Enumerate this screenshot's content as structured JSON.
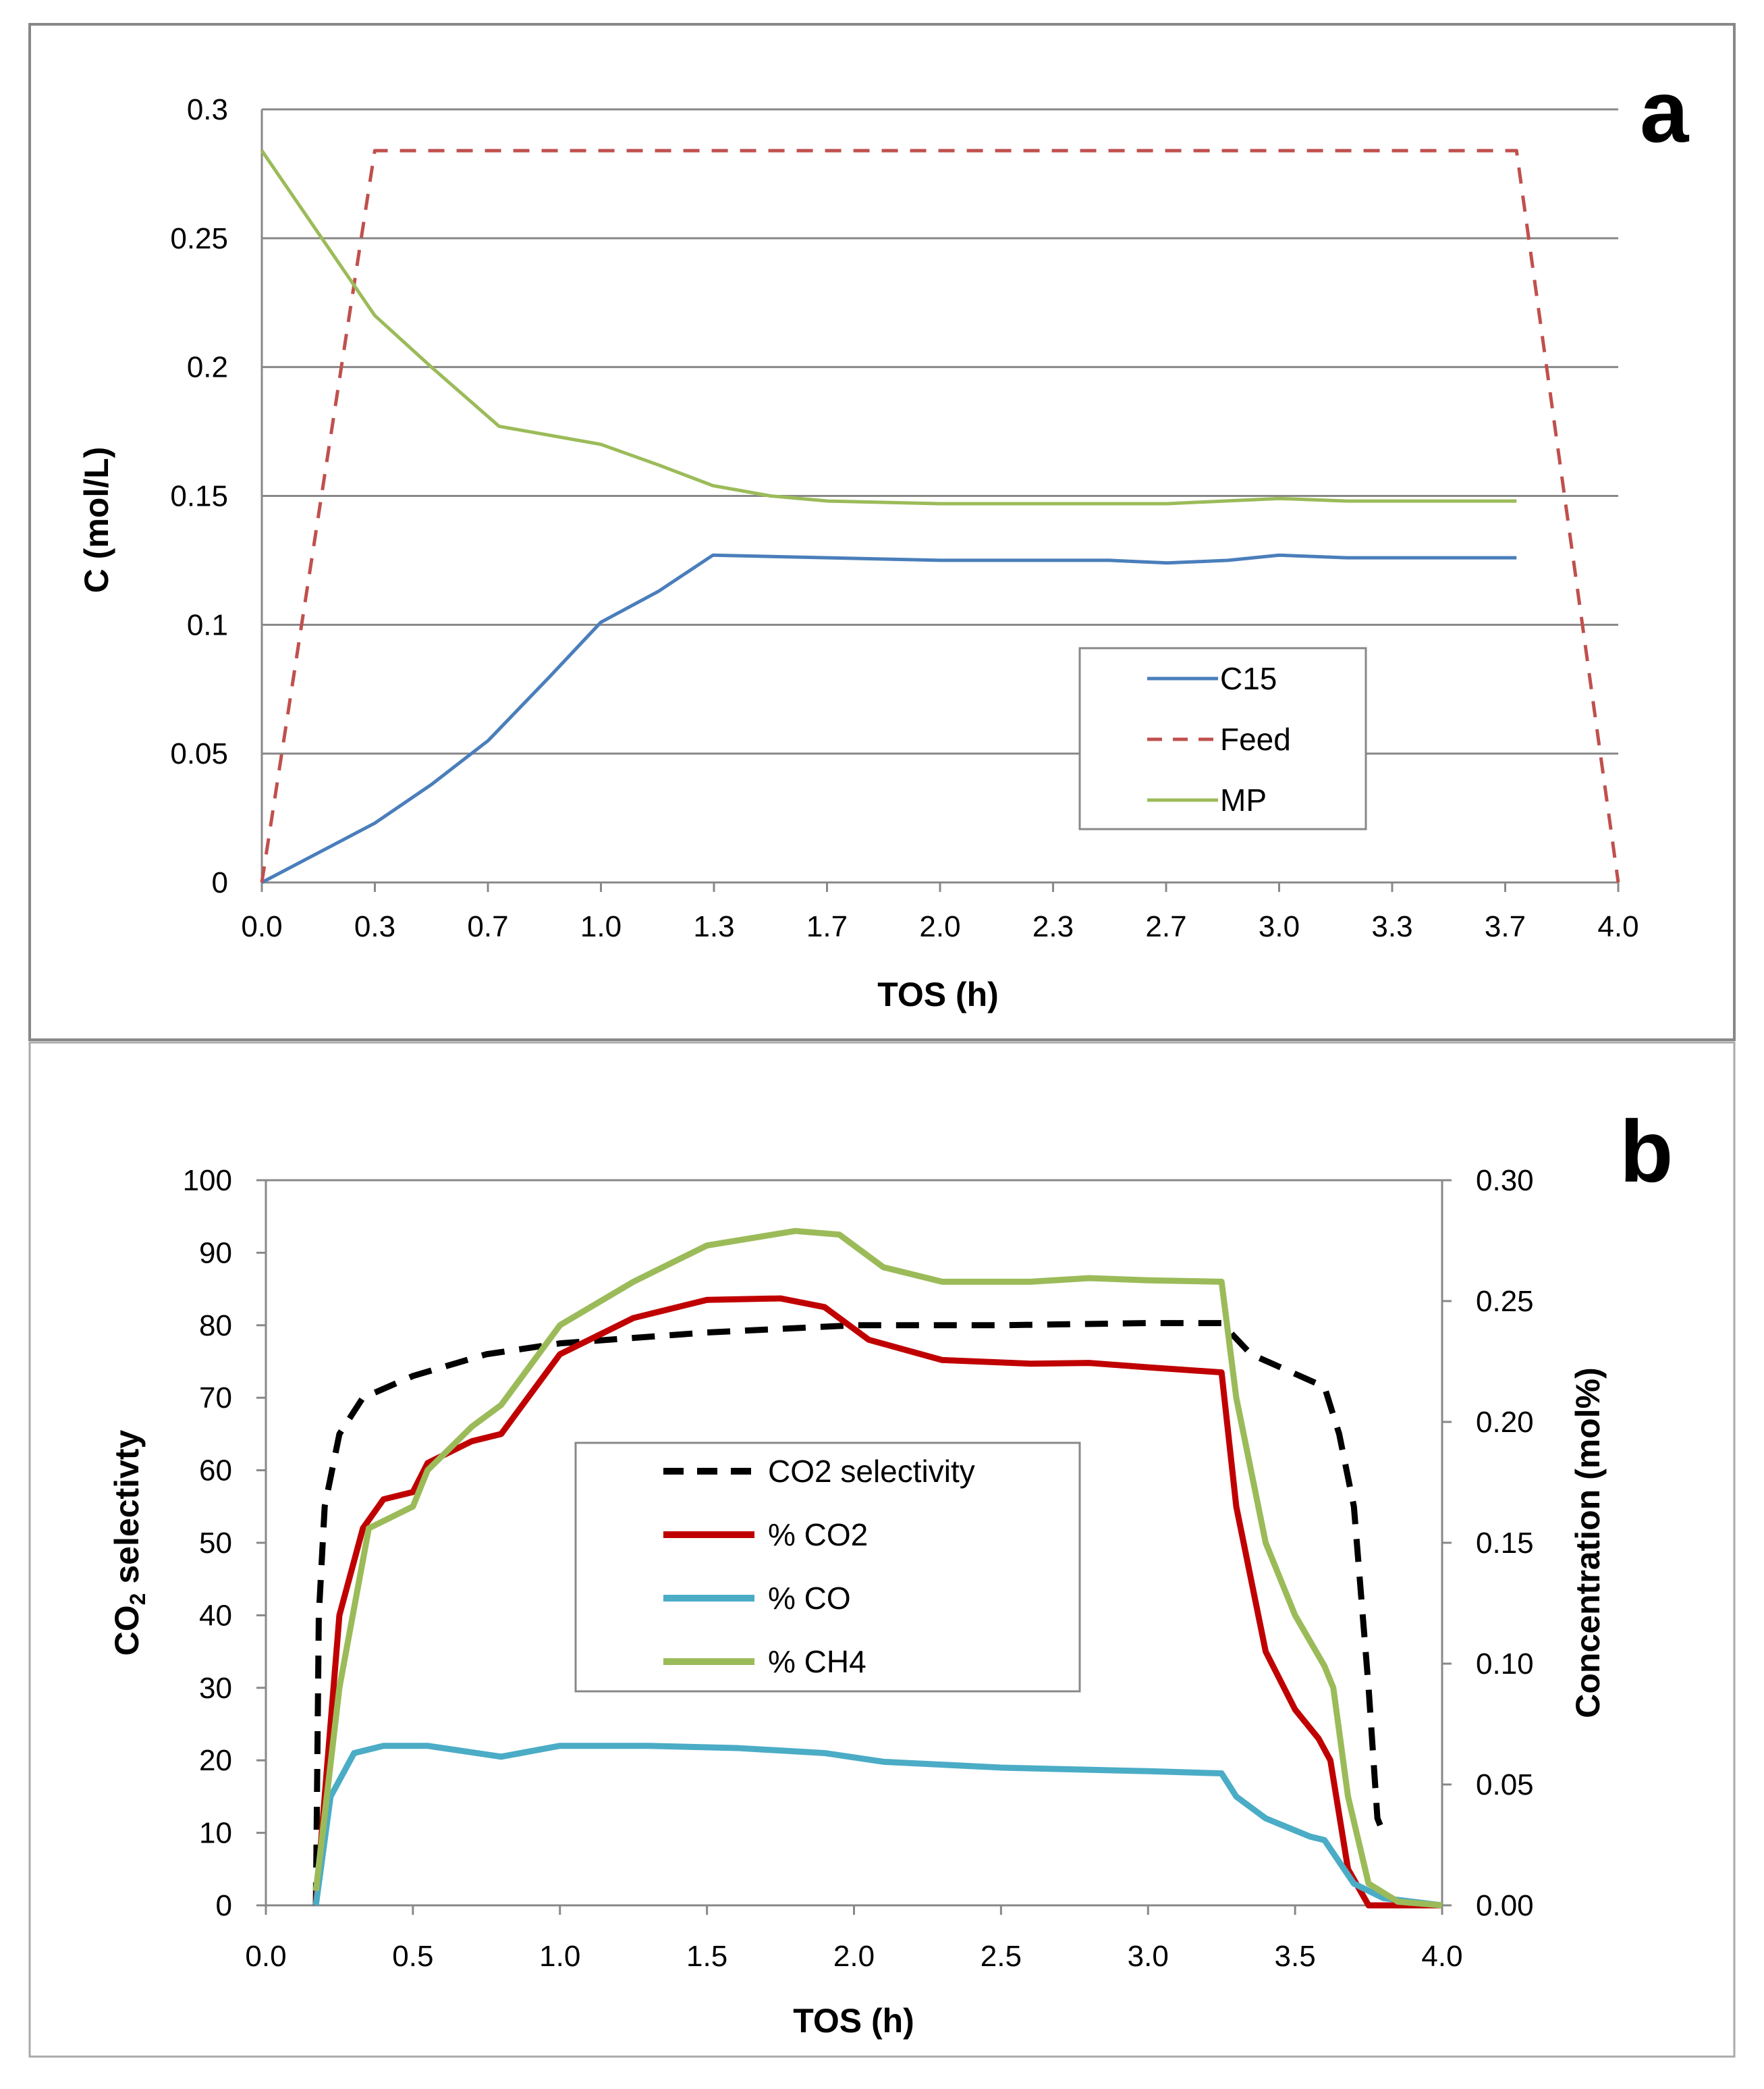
{
  "chart_data": [
    {
      "type": "line",
      "panel_label": "a",
      "xlabel": "TOS (h)",
      "ylabel": "C (mol/L)",
      "xlim": [
        0,
        4.0
      ],
      "ylim": [
        0,
        0.3
      ],
      "x_ticks": [
        0,
        0.3333,
        0.6667,
        1.0,
        1.3333,
        1.6667,
        2.0,
        2.3333,
        2.6667,
        3.0,
        3.3333,
        3.6667,
        4.0
      ],
      "x_tick_labels": [
        "0.0",
        "0.3",
        "0.7",
        "1.0",
        "1.3",
        "1.7",
        "2.0",
        "2.3",
        "2.7",
        "3.0",
        "3.3",
        "3.7",
        "4.0"
      ],
      "y_ticks": [
        0,
        0.05,
        0.1,
        0.15,
        0.2,
        0.25,
        0.3
      ],
      "y_tick_labels": [
        "0",
        "0.05",
        "0.1",
        "0.15",
        "0.2",
        "0.25",
        "0.3"
      ],
      "grid": "horizontal",
      "legend_position": "center-right",
      "series": [
        {
          "name": "C15",
          "color": "#4a7ebb",
          "dash": "solid",
          "x": [
            0,
            0.333,
            0.5,
            0.667,
            0.85,
            1.0,
            1.17,
            1.33,
            1.67,
            2.0,
            2.33,
            2.5,
            2.67,
            2.85,
            3.0,
            3.2,
            3.7
          ],
          "y": [
            0,
            0.023,
            0.038,
            0.055,
            0.08,
            0.101,
            0.113,
            0.127,
            0.126,
            0.125,
            0.125,
            0.125,
            0.124,
            0.125,
            0.127,
            0.126,
            0.126
          ]
        },
        {
          "name": "Feed",
          "color": "#c0504d",
          "dash": "dashed",
          "x": [
            0,
            0.333,
            3.7,
            4.0
          ],
          "y": [
            0,
            0.284,
            0.284,
            0
          ]
        },
        {
          "name": "MP",
          "color": "#9bbb59",
          "dash": "solid",
          "x": [
            0,
            0.333,
            0.5,
            0.7,
            1.0,
            1.17,
            1.33,
            1.5,
            1.67,
            2.0,
            2.33,
            2.67,
            3.0,
            3.2,
            3.7
          ],
          "y": [
            0.284,
            0.22,
            0.2,
            0.177,
            0.17,
            0.162,
            0.154,
            0.15,
            0.148,
            0.147,
            0.147,
            0.147,
            0.149,
            0.148,
            0.148
          ]
        }
      ]
    },
    {
      "type": "line",
      "panel_label": "b",
      "xlabel": "TOS (h)",
      "ylabel": "CO2 selectivty",
      "ylabel_main": "CO",
      "ylabel_sub": "2",
      "ylabel_rest": " selectivty",
      "y2label": "Concentration (mol%)",
      "xlim": [
        0,
        4.0
      ],
      "ylim": [
        0,
        100
      ],
      "y2lim": [
        0,
        0.3
      ],
      "x_ticks": [
        0,
        0.5,
        1.0,
        1.5,
        2.0,
        2.5,
        3.0,
        3.5,
        4.0
      ],
      "x_tick_labels": [
        "0.0",
        "0.5",
        "1.0",
        "1.5",
        "2.0",
        "2.5",
        "3.0",
        "3.5",
        "4.0"
      ],
      "y_ticks": [
        0,
        10,
        20,
        30,
        40,
        50,
        60,
        70,
        80,
        90,
        100
      ],
      "y_tick_labels": [
        "0",
        "10",
        "20",
        "30",
        "40",
        "50",
        "60",
        "70",
        "80",
        "90",
        "100"
      ],
      "y2_ticks": [
        0,
        0.05,
        0.1,
        0.15,
        0.2,
        0.25,
        0.3
      ],
      "y2_tick_labels": [
        "0.00",
        "0.05",
        "0.10",
        "0.15",
        "0.20",
        "0.25",
        "0.30"
      ],
      "grid": "none",
      "legend_position": "center",
      "series": [
        {
          "name": "CO2 selectivity",
          "axis": "left",
          "color": "#000000",
          "dash": "dashed",
          "x": [
            0.17,
            0.18,
            0.2,
            0.25,
            0.33,
            0.5,
            0.75,
            1.0,
            1.5,
            2.0,
            2.5,
            3.0,
            3.25,
            3.35,
            3.6,
            3.65,
            3.7,
            3.75,
            3.78,
            3.8
          ],
          "y": [
            0,
            40,
            55,
            65,
            70,
            73,
            76,
            77.5,
            79,
            80,
            80,
            80.3,
            80.3,
            76,
            71.5,
            65,
            55,
            30,
            12,
            10
          ]
        },
        {
          "name": "% CO2",
          "axis": "right",
          "color": "#c00000",
          "dash": "solid",
          "x": [
            0.17,
            0.25,
            0.33,
            0.4,
            0.5,
            0.55,
            0.7,
            0.8,
            1.0,
            1.25,
            1.5,
            1.75,
            1.9,
            2.05,
            2.3,
            2.6,
            2.8,
            3.0,
            3.25,
            3.3,
            3.4,
            3.5,
            3.58,
            3.62,
            3.68,
            3.75,
            4.0
          ],
          "y": [
            0,
            0.12,
            0.156,
            0.168,
            0.171,
            0.183,
            0.192,
            0.195,
            0.228,
            0.243,
            0.2505,
            0.2511,
            0.2475,
            0.234,
            0.2256,
            0.2241,
            0.2244,
            0.2226,
            0.2205,
            0.165,
            0.105,
            0.081,
            0.069,
            0.06,
            0.015,
            0,
            0
          ]
        },
        {
          "name": "% CO",
          "axis": "right",
          "color": "#4bacc6",
          "dash": "solid",
          "x": [
            0.17,
            0.22,
            0.3,
            0.4,
            0.55,
            0.8,
            1.0,
            1.3,
            1.6,
            1.9,
            2.1,
            2.5,
            3.0,
            3.25,
            3.3,
            3.4,
            3.55,
            3.6,
            3.65,
            3.7,
            3.8,
            4.0
          ],
          "y": [
            0,
            0.045,
            0.063,
            0.066,
            0.066,
            0.0615,
            0.066,
            0.066,
            0.0651,
            0.063,
            0.0594,
            0.057,
            0.0555,
            0.0546,
            0.045,
            0.036,
            0.0285,
            0.027,
            0.018,
            0.009,
            0.003,
            0
          ]
        },
        {
          "name": "% CH4",
          "axis": "right",
          "color": "#9bbb59",
          "dash": "solid",
          "x": [
            0.17,
            0.25,
            0.35,
            0.5,
            0.55,
            0.7,
            0.8,
            1.0,
            1.25,
            1.5,
            1.8,
            1.95,
            2.1,
            2.3,
            2.6,
            2.8,
            3.0,
            3.25,
            3.3,
            3.4,
            3.5,
            3.6,
            3.63,
            3.68,
            3.75,
            3.85,
            4.0
          ],
          "y": [
            0.006,
            0.09,
            0.156,
            0.165,
            0.18,
            0.198,
            0.207,
            0.24,
            0.258,
            0.273,
            0.279,
            0.2775,
            0.264,
            0.258,
            0.258,
            0.2595,
            0.2586,
            0.258,
            0.21,
            0.15,
            0.12,
            0.099,
            0.09,
            0.045,
            0.009,
            0.0015,
            0
          ]
        }
      ]
    }
  ]
}
